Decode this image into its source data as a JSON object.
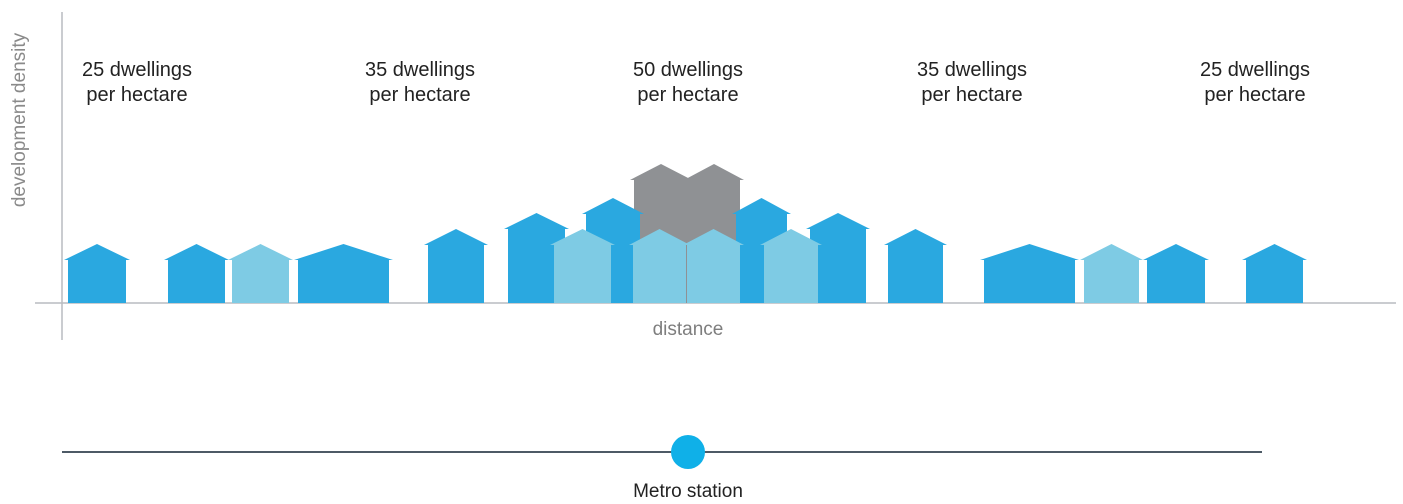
{
  "diagram": {
    "y_axis_label": "development density",
    "x_axis_label": "distance",
    "station_label": "Metro station",
    "zones": [
      {
        "dwellings": "25 dwellings",
        "unit": "per hectare"
      },
      {
        "dwellings": "35 dwellings",
        "unit": "per hectare"
      },
      {
        "dwellings": "50 dwellings",
        "unit": "per hectare"
      },
      {
        "dwellings": "35 dwellings",
        "unit": "per hectare"
      },
      {
        "dwellings": "25 dwellings",
        "unit": "per hectare"
      }
    ]
  },
  "colors": {
    "house_blue": "#2aa8e0",
    "house_light_blue": "#7ecbe4",
    "house_grey": "#8f9194",
    "axis_line": "#b9bcc0",
    "station_line": "#4d5a66",
    "station_dot": "#0fb0e8"
  }
}
